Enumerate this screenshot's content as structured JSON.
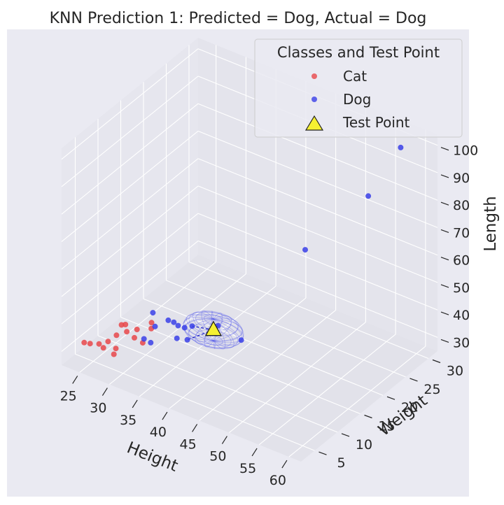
{
  "chart_data": {
    "type": "scatter",
    "projection": "3d",
    "title": "KNN Prediction 1: Predicted = Dog, Actual = Dog",
    "xlabel": "Height",
    "ylabel": "Weight",
    "zlabel": "Length",
    "xlim": [
      22,
      62
    ],
    "ylim": [
      2,
      32
    ],
    "zlim": [
      25,
      104
    ],
    "x_ticks": [
      "25",
      "30",
      "35",
      "40",
      "45",
      "50",
      "55",
      "60"
    ],
    "y_ticks": [
      "5",
      "10",
      "15",
      "20",
      "25",
      "30"
    ],
    "z_ticks": [
      "30",
      "40",
      "50",
      "60",
      "70",
      "80",
      "90",
      "100"
    ],
    "grid": true,
    "legend": {
      "title": "Classes and Test Point",
      "position": "top-right",
      "entries": [
        {
          "label": "Cat",
          "color": "#e8474a",
          "marker": "circle"
        },
        {
          "label": "Dog",
          "color": "#3a3fe8",
          "marker": "circle"
        },
        {
          "label": "Test Point",
          "color": "#f5f032",
          "marker": "triangle"
        }
      ]
    },
    "series": [
      {
        "name": "Cat",
        "color": "#e8474a",
        "points": [
          {
            "x": 23.5,
            "y": 5.0,
            "z": 30.5
          },
          {
            "x": 24.4,
            "y": 5.1,
            "z": 30.8
          },
          {
            "x": 25.6,
            "y": 5.5,
            "z": 31.2
          },
          {
            "x": 26.4,
            "y": 5.4,
            "z": 30.6
          },
          {
            "x": 26.5,
            "y": 6.3,
            "z": 31.8
          },
          {
            "x": 28.3,
            "y": 5.2,
            "z": 30.2
          },
          {
            "x": 28.4,
            "y": 5.5,
            "z": 32.0
          },
          {
            "x": 27.6,
            "y": 6.7,
            "z": 34.5
          },
          {
            "x": 27.3,
            "y": 8.2,
            "z": 36.0
          },
          {
            "x": 27.8,
            "y": 8.4,
            "z": 36.3
          },
          {
            "x": 28.4,
            "y": 7.9,
            "z": 34.9
          },
          {
            "x": 29.5,
            "y": 8.7,
            "z": 35.6
          },
          {
            "x": 29.6,
            "y": 8.0,
            "z": 33.6
          },
          {
            "x": 31.3,
            "y": 7.6,
            "z": 33.8
          },
          {
            "x": 31.2,
            "y": 9.6,
            "z": 36.2
          },
          {
            "x": 30.8,
            "y": 10.2,
            "z": 37.2
          }
        ]
      },
      {
        "name": "Dog",
        "color": "#3a3fe8",
        "points": [
          {
            "x": 30.9,
            "y": 8.4,
            "z": 33.8
          },
          {
            "x": 32.1,
            "y": 8.3,
            "z": 33.6
          },
          {
            "x": 31.3,
            "y": 10.3,
            "z": 36.1
          },
          {
            "x": 30.1,
            "y": 11.4,
            "z": 38.6
          },
          {
            "x": 32.3,
            "y": 11.9,
            "z": 37.1
          },
          {
            "x": 33.3,
            "y": 11.8,
            "z": 37.4
          },
          {
            "x": 34.1,
            "y": 11.7,
            "z": 37.0
          },
          {
            "x": 35.1,
            "y": 11.8,
            "z": 37.0
          },
          {
            "x": 36.0,
            "y": 12.3,
            "z": 37.7
          },
          {
            "x": 35.1,
            "y": 10.1,
            "z": 35.4
          },
          {
            "x": 36.7,
            "y": 10.3,
            "z": 36.0
          },
          {
            "x": 39.0,
            "y": 14.0,
            "z": 38.2
          },
          {
            "x": 43.5,
            "y": 13.2,
            "z": 38.0
          },
          {
            "x": 47.5,
            "y": 22.0,
            "z": 62.6
          },
          {
            "x": 55.6,
            "y": 25.2,
            "z": 85.0
          },
          {
            "x": 58.2,
            "y": 28.9,
            "z": 100.0
          }
        ]
      }
    ],
    "test_point": {
      "x": 39.0,
      "y": 13.0,
      "z": 38.0,
      "color": "#f5f032"
    },
    "neighbor_sphere": {
      "center_x": 39.0,
      "center_y": 13.0,
      "center_z": 38.0,
      "radius_x": 4.5,
      "radius_y": 3.0,
      "radius_z": 4.0,
      "color": "#3a3fe8"
    }
  }
}
